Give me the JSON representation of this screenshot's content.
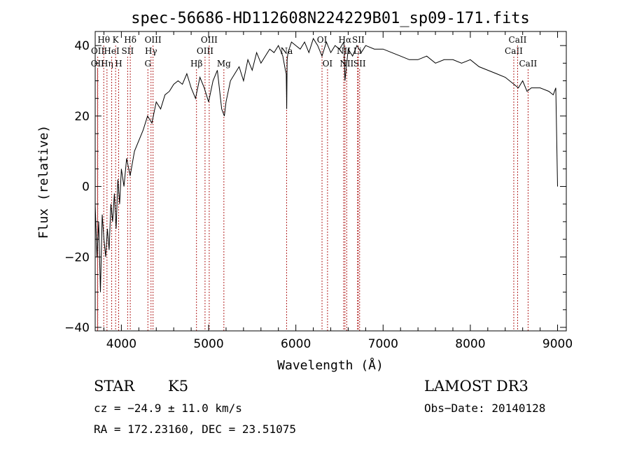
{
  "chart_data": {
    "type": "line",
    "title": "spec-56686-HD112608N224229B01_sp09-171.fits",
    "xlabel": "Wavelength (Å)",
    "ylabel": "Flux (relative)",
    "xlim": [
      3700,
      9100
    ],
    "ylim": [
      -41,
      44
    ],
    "xticks": [
      4000,
      5000,
      6000,
      7000,
      8000,
      9000
    ],
    "yticks": [
      -40,
      -20,
      0,
      20,
      40
    ],
    "series": [
      {
        "name": "spectrum",
        "x": [
          3700,
          3720,
          3740,
          3760,
          3780,
          3800,
          3820,
          3840,
          3860,
          3880,
          3900,
          3920,
          3940,
          3960,
          3980,
          4000,
          4030,
          4060,
          4100,
          4150,
          4200,
          4250,
          4300,
          4350,
          4400,
          4450,
          4500,
          4550,
          4600,
          4650,
          4700,
          4750,
          4800,
          4850,
          4900,
          4950,
          5000,
          5050,
          5100,
          5150,
          5180,
          5200,
          5250,
          5300,
          5350,
          5400,
          5450,
          5500,
          5550,
          5600,
          5650,
          5700,
          5750,
          5800,
          5850,
          5880,
          5890,
          5895,
          5900,
          5910,
          5950,
          6000,
          6050,
          6100,
          6150,
          6200,
          6250,
          6300,
          6350,
          6400,
          6450,
          6500,
          6550,
          6563,
          6600,
          6650,
          6700,
          6750,
          6800,
          6900,
          7000,
          7100,
          7200,
          7300,
          7400,
          7500,
          7600,
          7700,
          7800,
          7900,
          8000,
          8100,
          8200,
          8300,
          8400,
          8500,
          8550,
          8600,
          8650,
          8700,
          8800,
          8900,
          8950,
          8980,
          9000
        ],
        "y": [
          -5,
          -20,
          -10,
          -30,
          -8,
          -15,
          -20,
          -12,
          -18,
          -5,
          -10,
          -2,
          -12,
          2,
          -5,
          5,
          0,
          8,
          3,
          10,
          13,
          16,
          20,
          18,
          24,
          22,
          26,
          27,
          29,
          30,
          29,
          32,
          28,
          25,
          31,
          28,
          24,
          30,
          33,
          22,
          20,
          24,
          30,
          32,
          34,
          30,
          36,
          33,
          38,
          35,
          37,
          39,
          38,
          40,
          37,
          33,
          32,
          22,
          36,
          38,
          41,
          40,
          39,
          41,
          38,
          42,
          40,
          37,
          41,
          38,
          40,
          39,
          41,
          30,
          39,
          37,
          40,
          38,
          40,
          39,
          39,
          38,
          37,
          36,
          36,
          37,
          35,
          36,
          36,
          35,
          36,
          34,
          33,
          32,
          31,
          29,
          28,
          30,
          27,
          28,
          28,
          27,
          26,
          28,
          0
        ]
      }
    ],
    "line_ids": [
      {
        "name": "OII",
        "wave": 3727,
        "row": 2
      },
      {
        "name": "OII",
        "wave": 3729,
        "row": 1
      },
      {
        "name": "Hθ",
        "wave": 3798,
        "row": 0
      },
      {
        "name": "Hη",
        "wave": 3835,
        "row": 2
      },
      {
        "name": "HeI",
        "wave": 3889,
        "row": 1
      },
      {
        "name": "K",
        "wave": 3934,
        "row": 0
      },
      {
        "name": "H",
        "wave": 3969,
        "row": 2
      },
      {
        "name": "SII",
        "wave": 4072,
        "row": 1
      },
      {
        "name": "Hδ",
        "wave": 4102,
        "row": 0
      },
      {
        "name": "G",
        "wave": 4304,
        "row": 2
      },
      {
        "name": "Hγ",
        "wave": 4340,
        "row": 1
      },
      {
        "name": "OIII",
        "wave": 4363,
        "row": 0
      },
      {
        "name": "Hβ",
        "wave": 4861,
        "row": 2
      },
      {
        "name": "OIII",
        "wave": 4959,
        "row": 1
      },
      {
        "name": "OIII",
        "wave": 5007,
        "row": 0
      },
      {
        "name": "Mg",
        "wave": 5175,
        "row": 2
      },
      {
        "name": "Na",
        "wave": 5894,
        "row": 1
      },
      {
        "name": "OI",
        "wave": 6300,
        "row": 0
      },
      {
        "name": "OI",
        "wave": 6363,
        "row": 2
      },
      {
        "name": "NII",
        "wave": 6548,
        "row": 1
      },
      {
        "name": "Hα",
        "wave": 6563,
        "row": 0
      },
      {
        "name": "NII",
        "wave": 6583,
        "row": 2
      },
      {
        "name": "SII",
        "wave": 6716,
        "row": 0
      },
      {
        "name": "SII",
        "wave": 6731,
        "row": 2
      },
      {
        "name": "Li",
        "wave": 6707,
        "row": 1
      },
      {
        "name": "CaII",
        "wave": 8498,
        "row": 1
      },
      {
        "name": "CaII",
        "wave": 8542,
        "row": 0
      },
      {
        "name": "CaII",
        "wave": 8662,
        "row": 2
      }
    ]
  },
  "info": {
    "class": "STAR",
    "subclass": "K5",
    "survey": "LAMOST DR3",
    "cz": "cz = −24.9 ± 11.0 km/s",
    "obs_date": "Obs−Date: 20140128",
    "coords": "RA = 172.23160, DEC =  23.51075"
  }
}
